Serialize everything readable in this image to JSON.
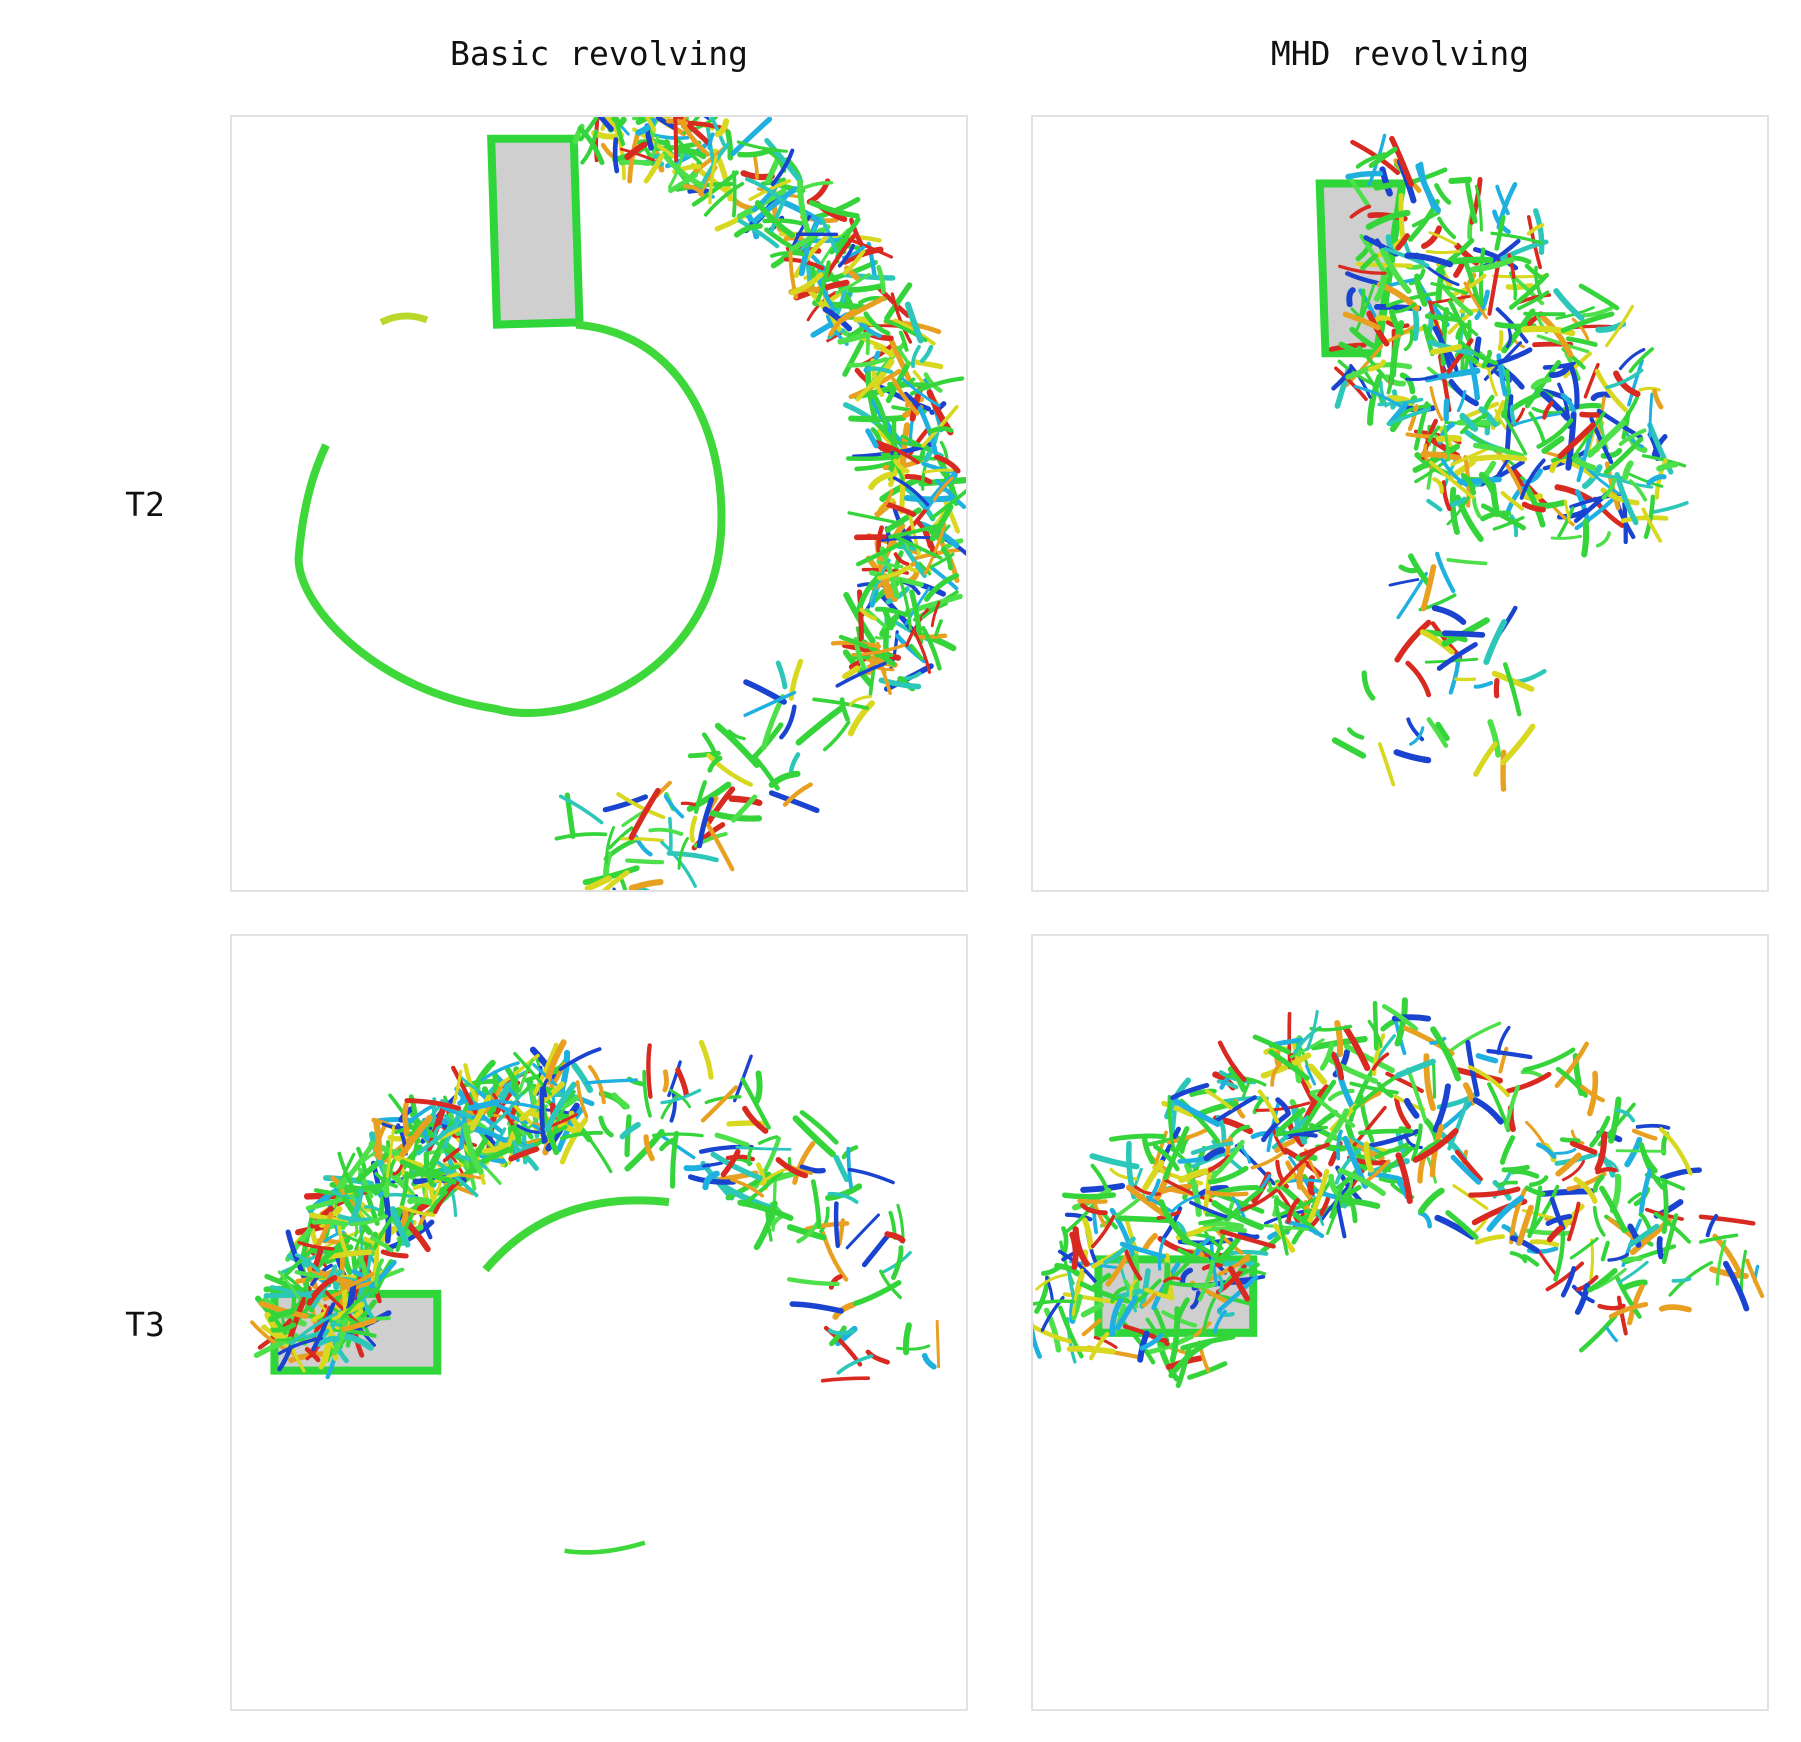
{
  "header": {
    "columns": [
      "Basic revolving",
      "MHD revolving"
    ]
  },
  "rows": [
    "T2",
    "T3"
  ]
}
